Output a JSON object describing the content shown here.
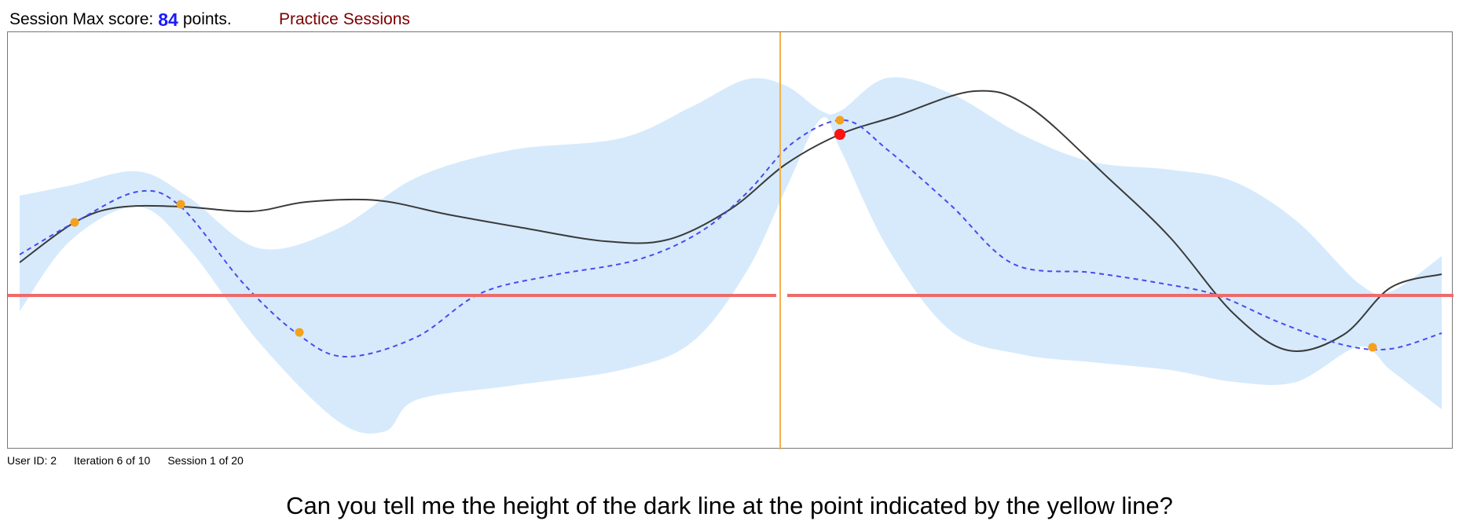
{
  "header": {
    "score_prefix": "Session Max score:",
    "score_value": "84",
    "score_suffix": "points.",
    "practice_link": "Practice Sessions"
  },
  "footer": {
    "user_id": "User ID: 2",
    "iteration": "Iteration 6 of 10",
    "session": "Session 1 of 20"
  },
  "question": "Can you tell me the height of the dark line at the point indicated by the yellow line?",
  "colors": {
    "band": "#d6eafc",
    "mean": "#4a4aee",
    "truth": "#3a3a3a",
    "threshold": "#ee6b6b",
    "indicator": "#f5b04a",
    "sample": "#f5a11c",
    "current": "#ff1111",
    "score": "#1a1aff",
    "link": "#7a0000"
  }
}
